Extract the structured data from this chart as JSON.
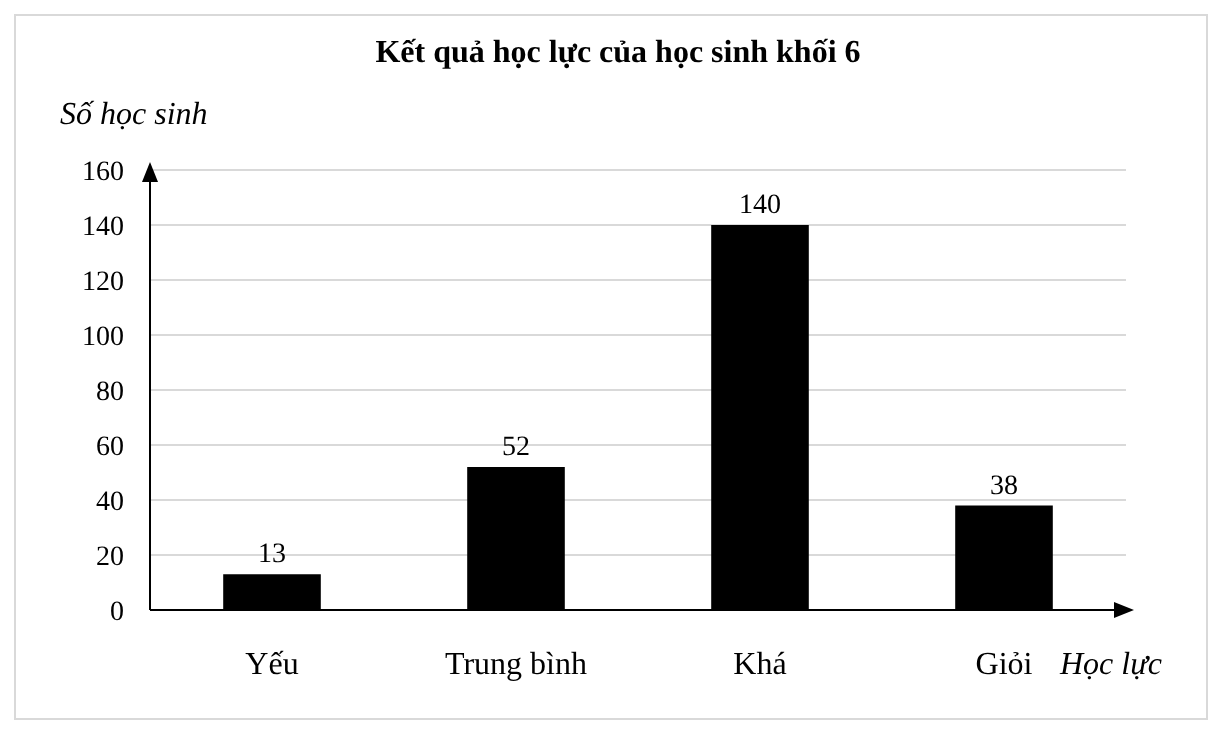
{
  "chart_data": {
    "type": "bar",
    "title": "Kết quả học lực của học sinh khối 6",
    "ylabel": "Số học sinh",
    "xlabel": "Học lực",
    "categories": [
      "Yếu",
      "Trung bình",
      "Khá",
      "Giỏi"
    ],
    "values": [
      13,
      52,
      140,
      38
    ],
    "color": "#000000",
    "ylim": [
      0,
      160
    ],
    "yticks": [
      0,
      20,
      40,
      60,
      80,
      100,
      120,
      140,
      160
    ],
    "grid": "y",
    "data_labels": true
  }
}
